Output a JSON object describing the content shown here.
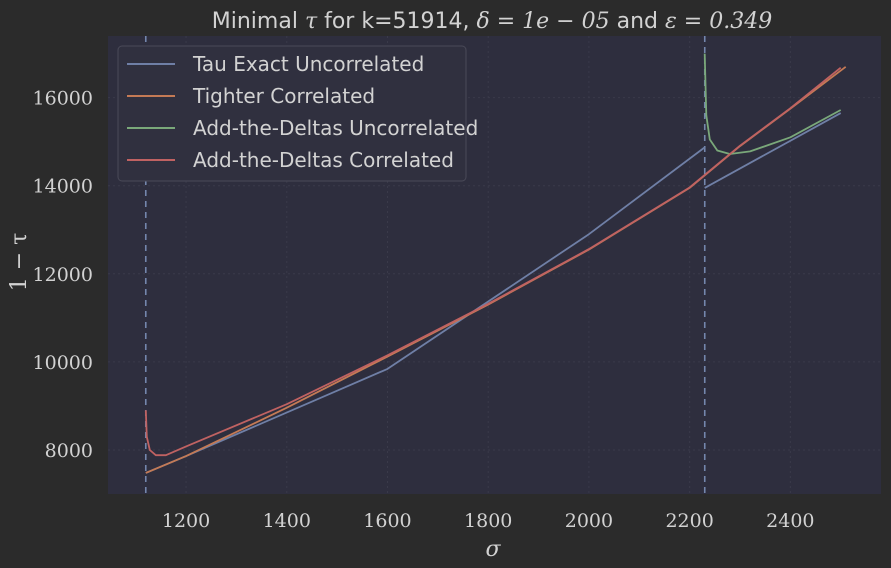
{
  "chart_data": {
    "type": "line",
    "title": {
      "prefix": "Minimal ",
      "tau": "τ",
      "mid1": " for k=51914, ",
      "delta": "δ = 1e − 05",
      "mid2": " and ",
      "eps": "ε = 0.349"
    },
    "xlabel": "σ",
    "ylabel": "1 − τ",
    "xlim": [
      1045,
      2580
    ],
    "ylim": [
      7000,
      17400
    ],
    "xticks": [
      1200,
      1400,
      1600,
      1800,
      2000,
      2200,
      2400
    ],
    "yticks": [
      8000,
      10000,
      12000,
      14000,
      16000
    ],
    "grid": true,
    "legend_position": "top-left",
    "vlines": [
      1120,
      2230
    ],
    "series": [
      {
        "name": "Tau Exact Uncorrelated",
        "color": "#6f7fa6",
        "segments": [
          [
            [
              1120,
              7480
            ],
            [
              1200,
              7860
            ],
            [
              1600,
              9840
            ],
            [
              2000,
              12900
            ],
            [
              2230,
              14870
            ]
          ],
          [
            [
              2230,
              13950
            ],
            [
              2500,
              15650
            ]
          ]
        ]
      },
      {
        "name": "Tighter Correlated",
        "color": "#c47a55",
        "segments": [
          [
            [
              1120,
              7480
            ],
            [
              1200,
              7860
            ],
            [
              1400,
              8960
            ],
            [
              1600,
              10120
            ],
            [
              1800,
              11300
            ],
            [
              2000,
              12550
            ],
            [
              2200,
              13950
            ],
            [
              2300,
              14900
            ],
            [
              2400,
              15750
            ],
            [
              2510,
              16700
            ]
          ]
        ]
      },
      {
        "name": "Add-the-Deltas Uncorrelated",
        "color": "#7aa87a",
        "segments": [
          [
            [
              2230,
              17000
            ],
            [
              2233,
              15600
            ],
            [
              2240,
              15050
            ],
            [
              2255,
              14800
            ],
            [
              2280,
              14720
            ],
            [
              2320,
              14780
            ],
            [
              2400,
              15100
            ],
            [
              2500,
              15720
            ]
          ]
        ]
      },
      {
        "name": "Add-the-Deltas Correlated",
        "color": "#c06262",
        "segments": [
          [
            [
              1120,
              8900
            ],
            [
              1122,
              8300
            ],
            [
              1128,
              8000
            ],
            [
              1140,
              7880
            ],
            [
              1160,
              7880
            ],
            [
              1200,
              8080
            ],
            [
              1400,
              9040
            ],
            [
              1600,
              10150
            ],
            [
              1800,
              11320
            ],
            [
              2000,
              12560
            ],
            [
              2200,
              13960
            ],
            [
              2300,
              14910
            ],
            [
              2400,
              15760
            ],
            [
              2500,
              16680
            ]
          ]
        ]
      }
    ]
  }
}
